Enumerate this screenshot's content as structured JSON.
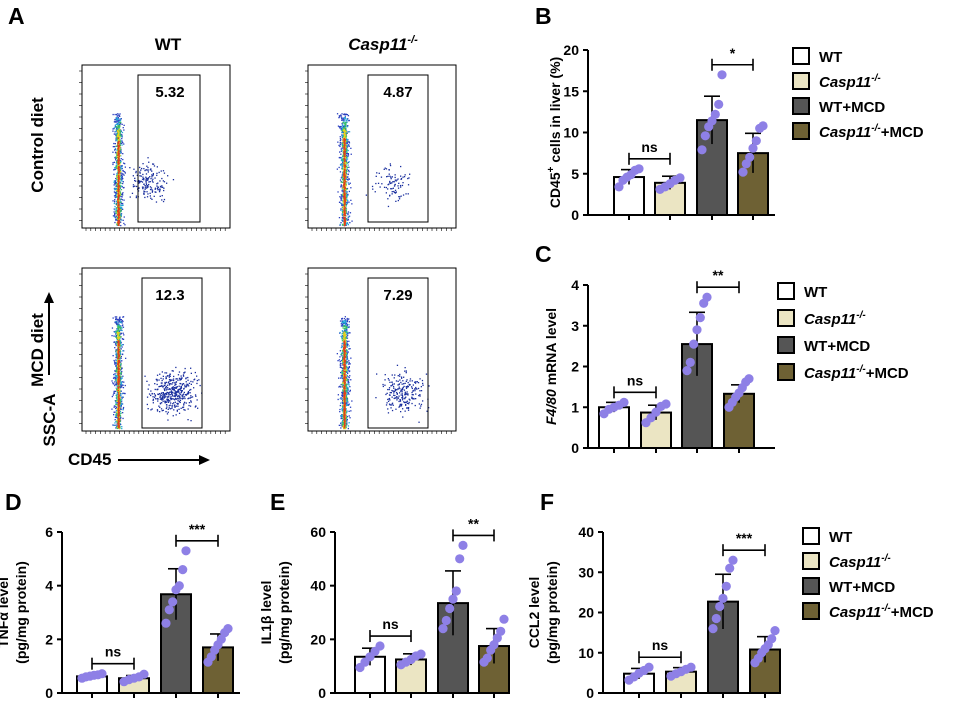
{
  "colors": {
    "wt": "#ffffff",
    "ko": "#ebe5c3",
    "wtmcd": "#555555",
    "komcd": "#6e6134",
    "dot": "#8e80e6"
  },
  "panelA": {
    "label": "A",
    "col_headers": [
      "WT",
      "Casp11"
    ],
    "col_header_sup": "-/-",
    "row_labels": [
      "Control diet",
      "MCD diet"
    ],
    "gates": [
      [
        "5.32",
        "4.87"
      ],
      [
        "12.3",
        "7.29"
      ]
    ],
    "y_axis": "SSC-A",
    "x_axis": "CD45"
  },
  "legend": {
    "items": [
      {
        "main": "WT",
        "sup": "",
        "tail": "",
        "color_key": "wt"
      },
      {
        "main": "Casp11",
        "sup": "-/-",
        "tail": "",
        "color_key": "ko"
      },
      {
        "main": "WT+MCD",
        "sup": "",
        "tail": "",
        "color_key": "wtmcd"
      },
      {
        "main": "Casp11",
        "sup": "-/-",
        "tail": "+MCD",
        "color_key": "komcd"
      }
    ]
  },
  "chart_data": [
    {
      "panel": "B",
      "type": "bar",
      "ylabel": "CD45+ cells in liver (%)",
      "ylim": [
        0,
        20
      ],
      "yticks": [
        0,
        5,
        10,
        15,
        20
      ],
      "series": [
        {
          "name": "WT",
          "mean": 4.6,
          "err": 0.9,
          "points": [
            3.4,
            4.2,
            4.6,
            4.9,
            5.4,
            5.6
          ]
        },
        {
          "name": "Casp11-/-",
          "mean": 3.9,
          "err": 0.8,
          "points": [
            3.1,
            3.4,
            3.8,
            4.2,
            4.5
          ]
        },
        {
          "name": "WT+MCD",
          "mean": 11.5,
          "err": 2.9,
          "points": [
            7.9,
            9.6,
            10.7,
            11.4,
            12.2,
            13.4,
            17.0
          ]
        },
        {
          "name": "Casp11-/-+MCD",
          "mean": 7.5,
          "err": 2.4,
          "points": [
            5.2,
            6.2,
            7.0,
            8.1,
            9.0,
            10.5,
            10.8
          ]
        }
      ],
      "comparisons": [
        {
          "pair": [
            0,
            1
          ],
          "label": "ns"
        },
        {
          "pair": [
            2,
            3
          ],
          "label": "*"
        }
      ]
    },
    {
      "panel": "C",
      "type": "bar",
      "ylabel": "F4/80 mRNA level",
      "ylim": [
        0,
        4
      ],
      "yticks": [
        0,
        1,
        2,
        3,
        4
      ],
      "series": [
        {
          "name": "WT",
          "mean": 1.0,
          "err": 0.12,
          "points": [
            0.84,
            0.95,
            1.0,
            1.05,
            1.12
          ]
        },
        {
          "name": "Casp11-/-",
          "mean": 0.87,
          "err": 0.18,
          "points": [
            0.62,
            0.74,
            0.88,
            1.02,
            1.08
          ]
        },
        {
          "name": "WT+MCD",
          "mean": 2.55,
          "err": 0.78,
          "points": [
            1.9,
            2.1,
            2.55,
            2.9,
            3.2,
            3.55,
            3.7
          ]
        },
        {
          "name": "Casp11-/-+MCD",
          "mean": 1.33,
          "err": 0.22,
          "points": [
            1.0,
            1.12,
            1.25,
            1.35,
            1.48,
            1.62,
            1.7
          ]
        }
      ],
      "comparisons": [
        {
          "pair": [
            0,
            1
          ],
          "label": "ns"
        },
        {
          "pair": [
            2,
            3
          ],
          "label": "**"
        }
      ]
    },
    {
      "panel": "D",
      "type": "bar",
      "ylabel": "TNFα level (pg/mg protein)",
      "ylim": [
        0,
        6
      ],
      "yticks": [
        0,
        2,
        4,
        6
      ],
      "series": [
        {
          "name": "WT",
          "mean": 0.62,
          "err": 0.08,
          "points": [
            0.55,
            0.6,
            0.63,
            0.66,
            0.68,
            0.72
          ]
        },
        {
          "name": "Casp11-/-",
          "mean": 0.55,
          "err": 0.1,
          "points": [
            0.42,
            0.5,
            0.55,
            0.6,
            0.7
          ]
        },
        {
          "name": "WT+MCD",
          "mean": 3.68,
          "err": 0.95,
          "points": [
            2.6,
            3.1,
            3.4,
            3.85,
            4.0,
            4.6,
            5.3
          ]
        },
        {
          "name": "Casp11-/-+MCD",
          "mean": 1.7,
          "err": 0.5,
          "points": [
            1.15,
            1.35,
            1.6,
            1.8,
            2.0,
            2.25,
            2.4
          ]
        }
      ],
      "comparisons": [
        {
          "pair": [
            0,
            1
          ],
          "label": "ns"
        },
        {
          "pair": [
            2,
            3
          ],
          "label": "***"
        }
      ]
    },
    {
      "panel": "E",
      "type": "bar",
      "ylabel": "IL1β level (pg/mg protein)",
      "ylim": [
        0,
        60
      ],
      "yticks": [
        0,
        20,
        40,
        60
      ],
      "series": [
        {
          "name": "WT",
          "mean": 13.5,
          "err": 3.2,
          "points": [
            9.5,
            11.5,
            13.5,
            15.5,
            17.5
          ]
        },
        {
          "name": "Casp11-/-",
          "mean": 12.5,
          "err": 2.1,
          "points": [
            10.5,
            11.5,
            12.5,
            13.8,
            14.5
          ]
        },
        {
          "name": "WT+MCD",
          "mean": 33.5,
          "err": 12.0,
          "points": [
            24.0,
            27.0,
            31.5,
            35.0,
            38.0,
            50.0,
            55.0
          ]
        },
        {
          "name": "Casp11-/-+MCD",
          "mean": 17.5,
          "err": 6.5,
          "points": [
            11.5,
            13.0,
            16.0,
            18.0,
            20.5,
            23.0,
            27.5
          ]
        }
      ],
      "comparisons": [
        {
          "pair": [
            0,
            1
          ],
          "label": "ns"
        },
        {
          "pair": [
            2,
            3
          ],
          "label": "**"
        }
      ]
    },
    {
      "panel": "F",
      "type": "bar",
      "ylabel": "CCL2 level (pg/mg protein)",
      "ylim": [
        0,
        40
      ],
      "yticks": [
        0,
        10,
        20,
        30,
        40
      ],
      "series": [
        {
          "name": "WT",
          "mean": 4.8,
          "err": 1.3,
          "points": [
            3.2,
            4.0,
            4.9,
            5.6,
            6.4
          ]
        },
        {
          "name": "Casp11-/-",
          "mean": 5.3,
          "err": 1.0,
          "points": [
            4.2,
            4.8,
            5.3,
            5.9,
            6.4
          ]
        },
        {
          "name": "WT+MCD",
          "mean": 22.7,
          "err": 6.8,
          "points": [
            16.0,
            18.5,
            21.5,
            23.5,
            26.5,
            31.0,
            33.0
          ]
        },
        {
          "name": "Casp11-/-+MCD",
          "mean": 10.8,
          "err": 3.2,
          "points": [
            7.5,
            8.6,
            10.0,
            11.0,
            12.0,
            13.5,
            15.5
          ]
        }
      ],
      "comparisons": [
        {
          "pair": [
            0,
            1
          ],
          "label": "ns"
        },
        {
          "pair": [
            2,
            3
          ],
          "label": "***"
        }
      ]
    }
  ]
}
